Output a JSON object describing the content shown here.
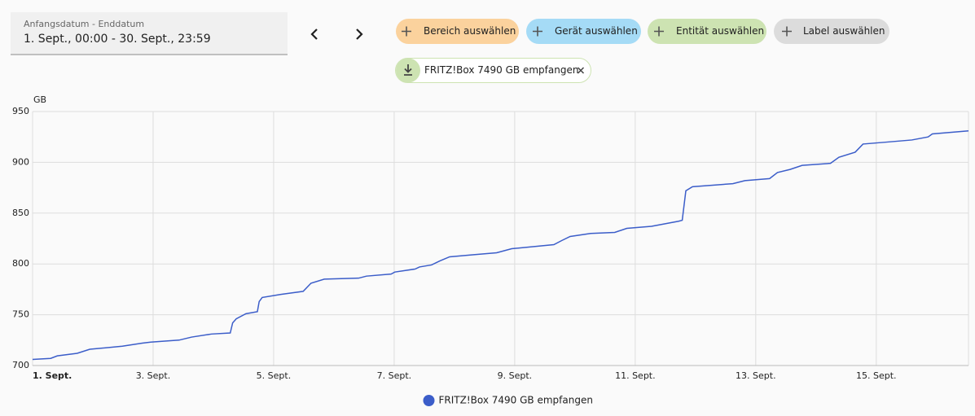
{
  "date_picker": {
    "label": "Anfangsdatum - Enddatum",
    "value": "1. Sept., 00:00 - 30. Sept., 23:59"
  },
  "target_picker": {
    "buttons": [
      "Bereich auswählen",
      "Gerät auswählen",
      "Entität auswählen",
      "Label auswählen"
    ],
    "selected": [
      "FRITZ!Box 7490 GB empfangen"
    ]
  },
  "chart_data": {
    "type": "line",
    "y_label": "GB",
    "x": [
      1,
      1.3,
      1.41,
      1.74,
      1.95,
      2.49,
      2.82,
      2.96,
      3.43,
      3.64,
      3.97,
      4.28,
      4.32,
      4.38,
      4.54,
      4.73,
      4.76,
      4.81,
      5.12,
      5.49,
      5.62,
      5.84,
      6.41,
      6.54,
      6.95,
      7.01,
      7.35,
      7.42,
      7.62,
      7.76,
      7.92,
      8.3,
      8.7,
      8.95,
      9.65,
      9.78,
      9.92,
      10.26,
      10.66,
      10.86,
      11.27,
      11.72,
      11.78,
      11.84,
      11.95,
      12.62,
      12.82,
      13.23,
      13.36,
      13.57,
      13.77,
      14.24,
      14.38,
      14.65,
      14.78,
      15.19,
      15.59,
      15.86,
      15.93,
      16.53
    ],
    "series": [
      {
        "name": "FRITZ!Box 7490 GB empfangen",
        "color": "#3b5dc9",
        "values": [
          706,
          707,
          709.5,
          712,
          716,
          719,
          722,
          723,
          725,
          728,
          731,
          732,
          742,
          746,
          751,
          753,
          763,
          767,
          770,
          773,
          781,
          785,
          786,
          788,
          790,
          792,
          795,
          797,
          799,
          803,
          807,
          809,
          811,
          815,
          819,
          823,
          827,
          830,
          831,
          835,
          837,
          842,
          843,
          872,
          876,
          879,
          882,
          884,
          890,
          893,
          897,
          899,
          905,
          910,
          918,
          920,
          922,
          925,
          928,
          931
        ]
      }
    ],
    "xlim": [
      1,
      16.53
    ],
    "xticks": [
      {
        "value": 1,
        "label": "1. Sept."
      },
      {
        "value": 3,
        "label": "3. Sept."
      },
      {
        "value": 5,
        "label": "5. Sept."
      },
      {
        "value": 7,
        "label": "7. Sept."
      },
      {
        "value": 9,
        "label": "9. Sept."
      },
      {
        "value": 11,
        "label": "11. Sept."
      },
      {
        "value": 13,
        "label": "13. Sept."
      },
      {
        "value": 15,
        "label": "15. Sept."
      }
    ],
    "ylim": [
      700,
      950
    ],
    "yticks": [
      700,
      750,
      800,
      850,
      900,
      950
    ],
    "grid": true,
    "legend": "bottom"
  }
}
